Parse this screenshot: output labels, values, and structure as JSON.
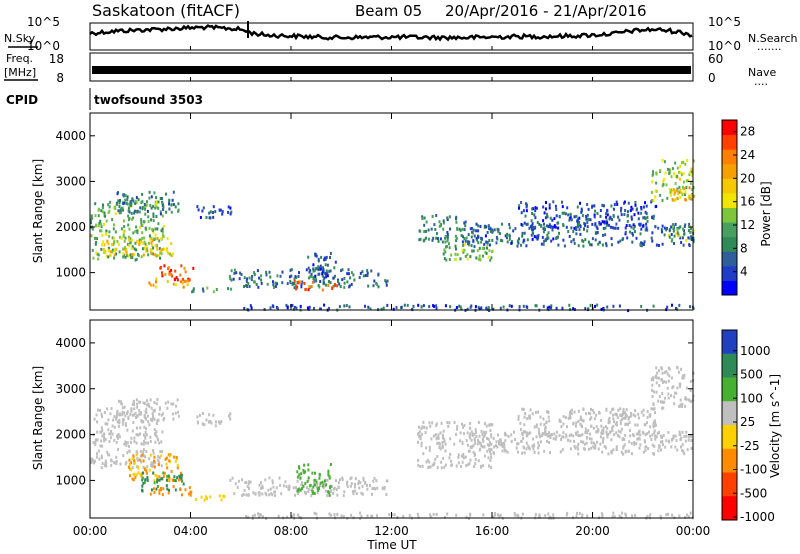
{
  "header": {
    "station": "Saskatoon (fitACF)",
    "beam": "Beam 05",
    "date_range": "20/Apr/2016 - 21/Apr/2016"
  },
  "side_labels": {
    "nsky": "N.Sky",
    "freq_line1": "Freq.",
    "freq_line2": "[MHz]",
    "cpid": "CPID",
    "nsearch": "N.Search",
    "nsearch_dots": ".......",
    "nave": "Nave",
    "nave_dots": "...."
  },
  "colors": {
    "power": [
      "#0000ff",
      "#1e3cc8",
      "#2f5f9a",
      "#2e8b57",
      "#48a060",
      "#7dc63c",
      "#f0e600",
      "#f5c800",
      "#f5a000",
      "#ff8000",
      "#ff4000",
      "#ff0000"
    ],
    "velocity": [
      "#2040c0",
      "#2e8b57",
      "#48b030",
      "#bfbfbf",
      "#ffd000",
      "#ff8c00",
      "#ff4000",
      "#ff0000"
    ]
  },
  "chart_data": [
    {
      "type": "line",
      "panel": "noise",
      "left_label": "N.Sky",
      "right_label": "N.Search",
      "left_ticks": [
        "10^5",
        "10^0"
      ],
      "right_ticks": [
        "10^5",
        "10^0"
      ],
      "x_ticks": [
        "00:00",
        "04:00",
        "08:00",
        "12:00",
        "16:00",
        "20:00",
        "00:00"
      ],
      "series": [
        {
          "x_hours": [
            0,
            0.5,
            1,
            1.5,
            2,
            2.5,
            3,
            3.5,
            4,
            4.5,
            5,
            5.5,
            6,
            6.5,
            7,
            8,
            9,
            10,
            11,
            12,
            13,
            14,
            15,
            16,
            17,
            18,
            19,
            20,
            21,
            21.5,
            22,
            22.5,
            23,
            23.5,
            24
          ],
          "level_frac": [
            0.62,
            0.66,
            0.7,
            0.72,
            0.74,
            0.76,
            0.78,
            0.8,
            0.82,
            0.84,
            0.82,
            0.8,
            0.76,
            0.62,
            0.55,
            0.52,
            0.48,
            0.46,
            0.47,
            0.48,
            0.47,
            0.46,
            0.46,
            0.48,
            0.5,
            0.5,
            0.52,
            0.55,
            0.62,
            0.7,
            0.74,
            0.76,
            0.72,
            0.66,
            0.55
          ]
        }
      ]
    },
    {
      "type": "line",
      "panel": "frequency",
      "left_label": "Freq. [MHz]",
      "right_label": "Nave",
      "left_ticks": [
        "18",
        "8"
      ],
      "right_ticks": [
        "60",
        "0"
      ],
      "series": [
        {
          "name": "frequency",
          "x_hours": [
            0,
            24
          ],
          "values_mhz": [
            11.5,
            11.5
          ]
        }
      ]
    },
    {
      "type": "table",
      "panel": "cpid",
      "label": "CPID",
      "program": "twofsound 3503"
    },
    {
      "type": "heatmap",
      "panel": "power",
      "xlabel": "",
      "ylabel": "Slant Range [km]",
      "ylim": [
        180,
        4500
      ],
      "y_ticks": [
        1000,
        2000,
        3000,
        4000
      ],
      "colorbar": {
        "label": "Power [dB]",
        "ticks": [
          4,
          8,
          12,
          16,
          20,
          24,
          28
        ],
        "range": [
          0,
          30
        ]
      },
      "regions": [
        {
          "t": [
            0.0,
            2.9
          ],
          "r": [
            1300,
            2600
          ],
          "db": 12
        },
        {
          "t": [
            0.5,
            3.3
          ],
          "r": [
            1400,
            1800
          ],
          "db": 18
        },
        {
          "t": [
            1.0,
            3.5
          ],
          "r": [
            2300,
            2800
          ],
          "db": 8
        },
        {
          "t": [
            4.2,
            5.6
          ],
          "r": [
            2200,
            2500
          ],
          "db": 6
        },
        {
          "t": [
            2.7,
            4.1
          ],
          "r": [
            800,
            1200
          ],
          "db": 26
        },
        {
          "t": [
            2.3,
            4.0
          ],
          "r": [
            700,
            900
          ],
          "db": 20
        },
        {
          "t": [
            4.0,
            6.0
          ],
          "r": [
            600,
            700
          ],
          "db": 10
        },
        {
          "t": [
            5.5,
            11.8
          ],
          "r": [
            700,
            1100
          ],
          "db": 7
        },
        {
          "t": [
            8.0,
            9.8
          ],
          "r": [
            650,
            850
          ],
          "db": 24
        },
        {
          "t": [
            8.6,
            9.8
          ],
          "r": [
            900,
            1500
          ],
          "db": 6
        },
        {
          "t": [
            6.0,
            24.0
          ],
          "r": [
            200,
            320
          ],
          "db": 5
        },
        {
          "t": [
            13.0,
            15.0
          ],
          "r": [
            1700,
            2300
          ],
          "db": 8
        },
        {
          "t": [
            14.0,
            16.0
          ],
          "r": [
            1300,
            1700
          ],
          "db": 12
        },
        {
          "t": [
            15.0,
            24.0
          ],
          "r": [
            1600,
            2100
          ],
          "db": 6
        },
        {
          "t": [
            17.0,
            22.5
          ],
          "r": [
            2000,
            2600
          ],
          "db": 5
        },
        {
          "t": [
            22.3,
            24.0
          ],
          "r": [
            2600,
            3500
          ],
          "db": 14
        },
        {
          "t": [
            23.0,
            24.0
          ],
          "r": [
            2600,
            2900
          ],
          "db": 20
        },
        {
          "t": [
            23.0,
            24.0
          ],
          "r": [
            1700,
            2100
          ],
          "db": 12
        }
      ]
    },
    {
      "type": "heatmap",
      "panel": "velocity",
      "xlabel": "Time UT",
      "ylabel": "Slant Range [km]",
      "ylim": [
        180,
        4500
      ],
      "y_ticks": [
        1000,
        2000,
        3000,
        4000
      ],
      "x_ticks": [
        "00:00",
        "04:00",
        "08:00",
        "12:00",
        "16:00",
        "20:00",
        "00:00"
      ],
      "colorbar": {
        "label": "Velocity [m s^-1]",
        "ticks": [
          1000,
          500,
          100,
          25,
          -25,
          -100,
          -500,
          -1000
        ]
      },
      "regions": [
        {
          "t": [
            0.0,
            2.9
          ],
          "r": [
            1300,
            2600
          ],
          "v": 0
        },
        {
          "t": [
            1.0,
            3.5
          ],
          "r": [
            2300,
            2800
          ],
          "v": 0
        },
        {
          "t": [
            4.2,
            5.6
          ],
          "r": [
            2200,
            2500
          ],
          "v": 0
        },
        {
          "t": [
            1.5,
            3.6
          ],
          "r": [
            1000,
            1600
          ],
          "v": -120
        },
        {
          "t": [
            2.0,
            3.8
          ],
          "r": [
            800,
            1200
          ],
          "v": 150
        },
        {
          "t": [
            2.3,
            4.0
          ],
          "r": [
            700,
            900
          ],
          "v": -300
        },
        {
          "t": [
            4.0,
            6.0
          ],
          "r": [
            600,
            700
          ],
          "v": -60
        },
        {
          "t": [
            5.5,
            11.8
          ],
          "r": [
            700,
            1100
          ],
          "v": 0
        },
        {
          "t": [
            8.2,
            9.6
          ],
          "r": [
            700,
            1400
          ],
          "v": 60
        },
        {
          "t": [
            6.0,
            24.0
          ],
          "r": [
            200,
            320
          ],
          "v": 0
        },
        {
          "t": [
            13.0,
            16.0
          ],
          "r": [
            1300,
            2300
          ],
          "v": 0
        },
        {
          "t": [
            15.0,
            24.0
          ],
          "r": [
            1600,
            2100
          ],
          "v": 0
        },
        {
          "t": [
            17.0,
            22.5
          ],
          "r": [
            2000,
            2600
          ],
          "v": 0
        },
        {
          "t": [
            22.3,
            24.0
          ],
          "r": [
            2600,
            3500
          ],
          "v": 0
        }
      ]
    }
  ]
}
